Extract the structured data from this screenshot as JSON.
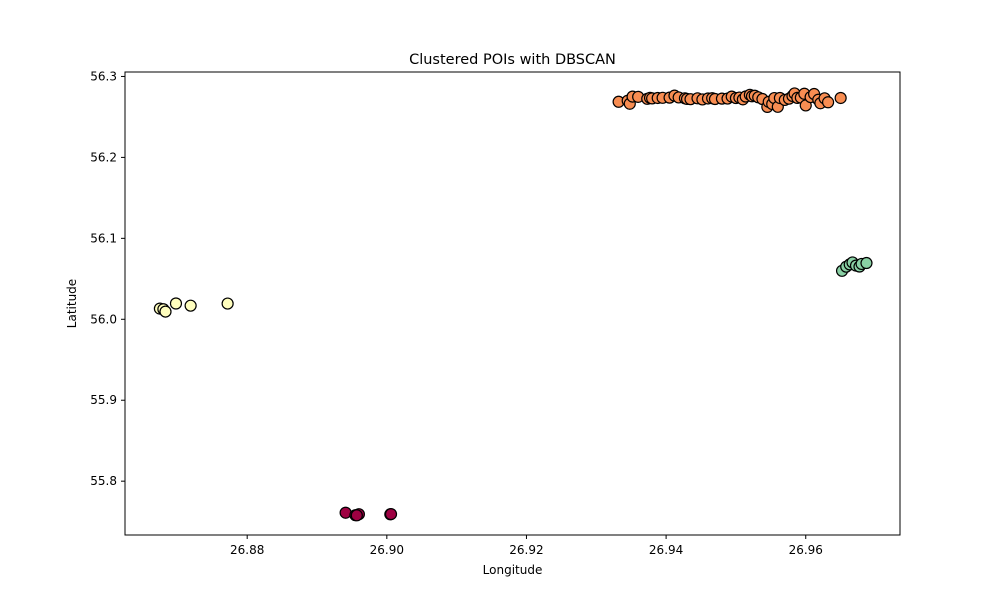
{
  "chart_data": {
    "type": "scatter",
    "title": "Clustered POIs with DBSCAN",
    "xlabel": "Longitude",
    "ylabel": "Latitude",
    "xlim": [
      26.8625,
      26.9735
    ],
    "ylim": [
      55.7335,
      56.3055
    ],
    "xticks": [
      26.88,
      26.9,
      26.92,
      26.94,
      26.96
    ],
    "xtick_labels": [
      "26.88",
      "26.90",
      "26.92",
      "26.94",
      "26.96"
    ],
    "yticks": [
      55.8,
      55.9,
      56.0,
      56.1,
      56.2,
      56.3
    ],
    "ytick_labels": [
      "55.8",
      "55.9",
      "56.0",
      "56.1",
      "56.2",
      "56.3"
    ],
    "grid": false,
    "series": [
      {
        "color": "#9e0142",
        "points": [
          [
            26.8941,
            55.761
          ],
          [
            26.8955,
            55.758
          ],
          [
            26.896,
            55.7592
          ],
          [
            26.8957,
            55.7578
          ],
          [
            26.9005,
            55.7591
          ],
          [
            26.9006,
            55.7593
          ]
        ]
      },
      {
        "color": "#fffebe",
        "points": [
          [
            26.8675,
            56.0132
          ],
          [
            26.868,
            56.0124
          ],
          [
            26.8683,
            56.0095
          ],
          [
            26.8698,
            56.0195
          ],
          [
            26.8719,
            56.0168
          ],
          [
            26.8772,
            56.0194
          ]
        ]
      },
      {
        "color": "#f88d52",
        "points": [
          [
            26.9332,
            56.2687
          ],
          [
            26.9345,
            56.27
          ],
          [
            26.9348,
            56.2663
          ],
          [
            26.9352,
            56.2751
          ],
          [
            26.936,
            56.2748
          ],
          [
            26.9373,
            56.2724
          ],
          [
            26.9377,
            56.2736
          ],
          [
            26.938,
            56.2729
          ],
          [
            26.9388,
            56.2734
          ],
          [
            26.9395,
            56.2736
          ],
          [
            26.9405,
            56.2738
          ],
          [
            26.9412,
            56.2763
          ],
          [
            26.9418,
            56.2741
          ],
          [
            26.9427,
            56.273
          ],
          [
            26.943,
            56.2722
          ],
          [
            26.9435,
            56.2719
          ],
          [
            26.9445,
            56.273
          ],
          [
            26.9452,
            56.2716
          ],
          [
            26.946,
            56.2728
          ],
          [
            26.9466,
            56.2731
          ],
          [
            26.947,
            56.2721
          ],
          [
            26.948,
            56.2726
          ],
          [
            26.9488,
            56.2727
          ],
          [
            26.9494,
            56.2751
          ],
          [
            26.95,
            56.2733
          ],
          [
            26.9505,
            56.2739
          ],
          [
            26.951,
            56.2717
          ],
          [
            26.9514,
            56.2752
          ],
          [
            26.952,
            56.2773
          ],
          [
            26.9523,
            56.2755
          ],
          [
            26.9527,
            56.2762
          ],
          [
            26.9532,
            56.2742
          ],
          [
            26.9538,
            56.2721
          ],
          [
            26.9545,
            56.2624
          ],
          [
            26.9547,
            56.2686
          ],
          [
            26.9552,
            56.266
          ],
          [
            26.9555,
            56.2733
          ],
          [
            26.956,
            56.2625
          ],
          [
            26.9563,
            56.2734
          ],
          [
            26.957,
            56.271
          ],
          [
            26.9576,
            56.2725
          ],
          [
            26.9581,
            56.2759
          ],
          [
            26.9584,
            56.279
          ],
          [
            26.9588,
            56.2735
          ],
          [
            26.9593,
            56.2739
          ],
          [
            26.9598,
            56.2786
          ],
          [
            26.96,
            56.2642
          ],
          [
            26.9607,
            56.2745
          ],
          [
            26.9612,
            56.2783
          ],
          [
            26.9618,
            56.2712
          ],
          [
            26.9621,
            56.2669
          ],
          [
            26.9627,
            56.273
          ],
          [
            26.9632,
            56.2681
          ],
          [
            26.965,
            56.2734
          ]
        ]
      },
      {
        "color": "#89d0a4",
        "points": [
          [
            26.9652,
            56.0599
          ],
          [
            26.9658,
            56.065
          ],
          [
            26.9663,
            56.0678
          ],
          [
            26.9667,
            56.0702
          ],
          [
            26.9672,
            56.0663
          ],
          [
            26.9677,
            56.0652
          ],
          [
            26.968,
            56.0684
          ],
          [
            26.9687,
            56.0695
          ]
        ]
      }
    ]
  }
}
